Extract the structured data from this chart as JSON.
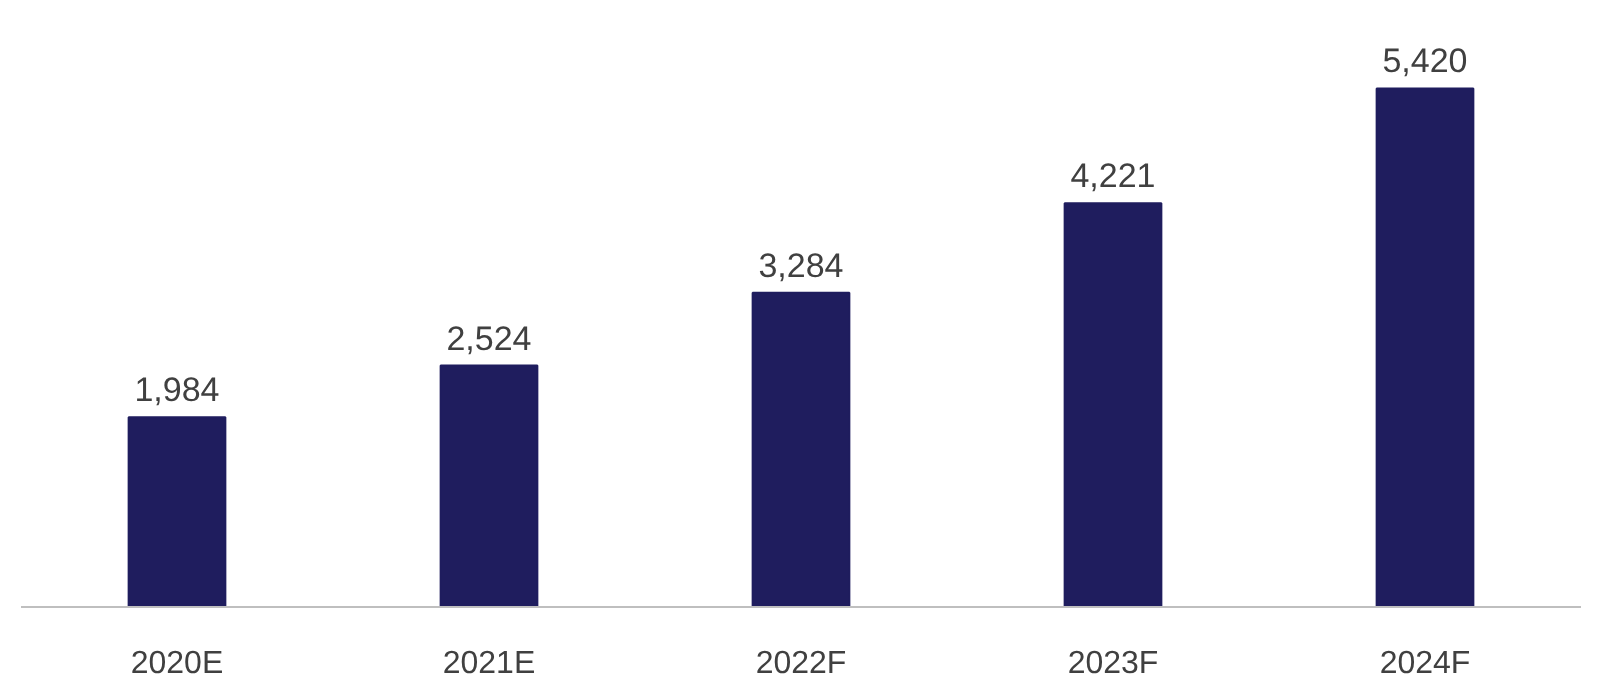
{
  "chart_data": {
    "type": "bar",
    "categories": [
      "2020E",
      "2021E",
      "2022F",
      "2023F",
      "2024F"
    ],
    "values": [
      1984,
      2524,
      3284,
      4221,
      5420
    ],
    "value_labels": [
      "1,984",
      "2,524",
      "3,284",
      "4,221",
      "5,420"
    ],
    "color": "#1f1d5e",
    "grid": false
  }
}
